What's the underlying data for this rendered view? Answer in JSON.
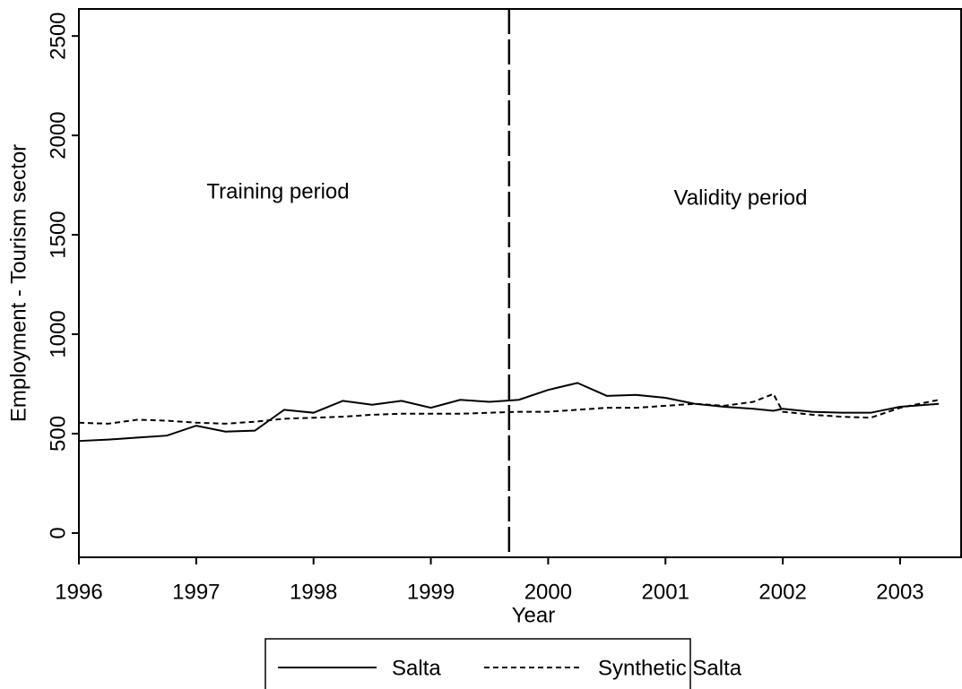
{
  "chart_data": {
    "type": "line",
    "x_label": "Year",
    "y_label": "Employment - Tourism sector",
    "x": [
      1996,
      1996.25,
      1996.5,
      1996.75,
      1997,
      1997.25,
      1997.5,
      1997.75,
      1998,
      1998.25,
      1998.5,
      1998.75,
      1999,
      1999.25,
      1999.5,
      1999.75,
      2000,
      2000.25,
      2000.5,
      2000.75,
      2001,
      2001.25,
      2001.5,
      2001.75,
      2001.92,
      2002,
      2002.25,
      2002.5,
      2002.75,
      2003,
      2003.33
    ],
    "series": [
      {
        "name": "Salta",
        "color": "#000000",
        "dash": false,
        "values": [
          463,
          470,
          480,
          490,
          540,
          510,
          515,
          620,
          605,
          665,
          645,
          665,
          630,
          670,
          660,
          670,
          720,
          755,
          690,
          695,
          680,
          650,
          635,
          625,
          615,
          625,
          610,
          605,
          605,
          635,
          650
        ]
      },
      {
        "name": "Synthetic Salta",
        "color": "#000000",
        "dash": true,
        "values": [
          555,
          550,
          570,
          565,
          555,
          550,
          560,
          575,
          580,
          585,
          595,
          600,
          600,
          600,
          605,
          610,
          610,
          620,
          630,
          630,
          640,
          650,
          640,
          660,
          700,
          610,
          595,
          585,
          580,
          630,
          670
        ]
      }
    ],
    "vline": 1999.667,
    "annotations": [
      "Training period",
      "Validity period"
    ],
    "xlim": [
      1996,
      2003.52
    ],
    "xticks": [
      1996,
      1997,
      1998,
      1999,
      2000,
      2001,
      2002,
      2003
    ],
    "ylim": [
      -122,
      2636
    ],
    "yticks": [
      0,
      500,
      1000,
      1500,
      2000,
      2500
    ],
    "grid": false,
    "legend": "bottom"
  }
}
